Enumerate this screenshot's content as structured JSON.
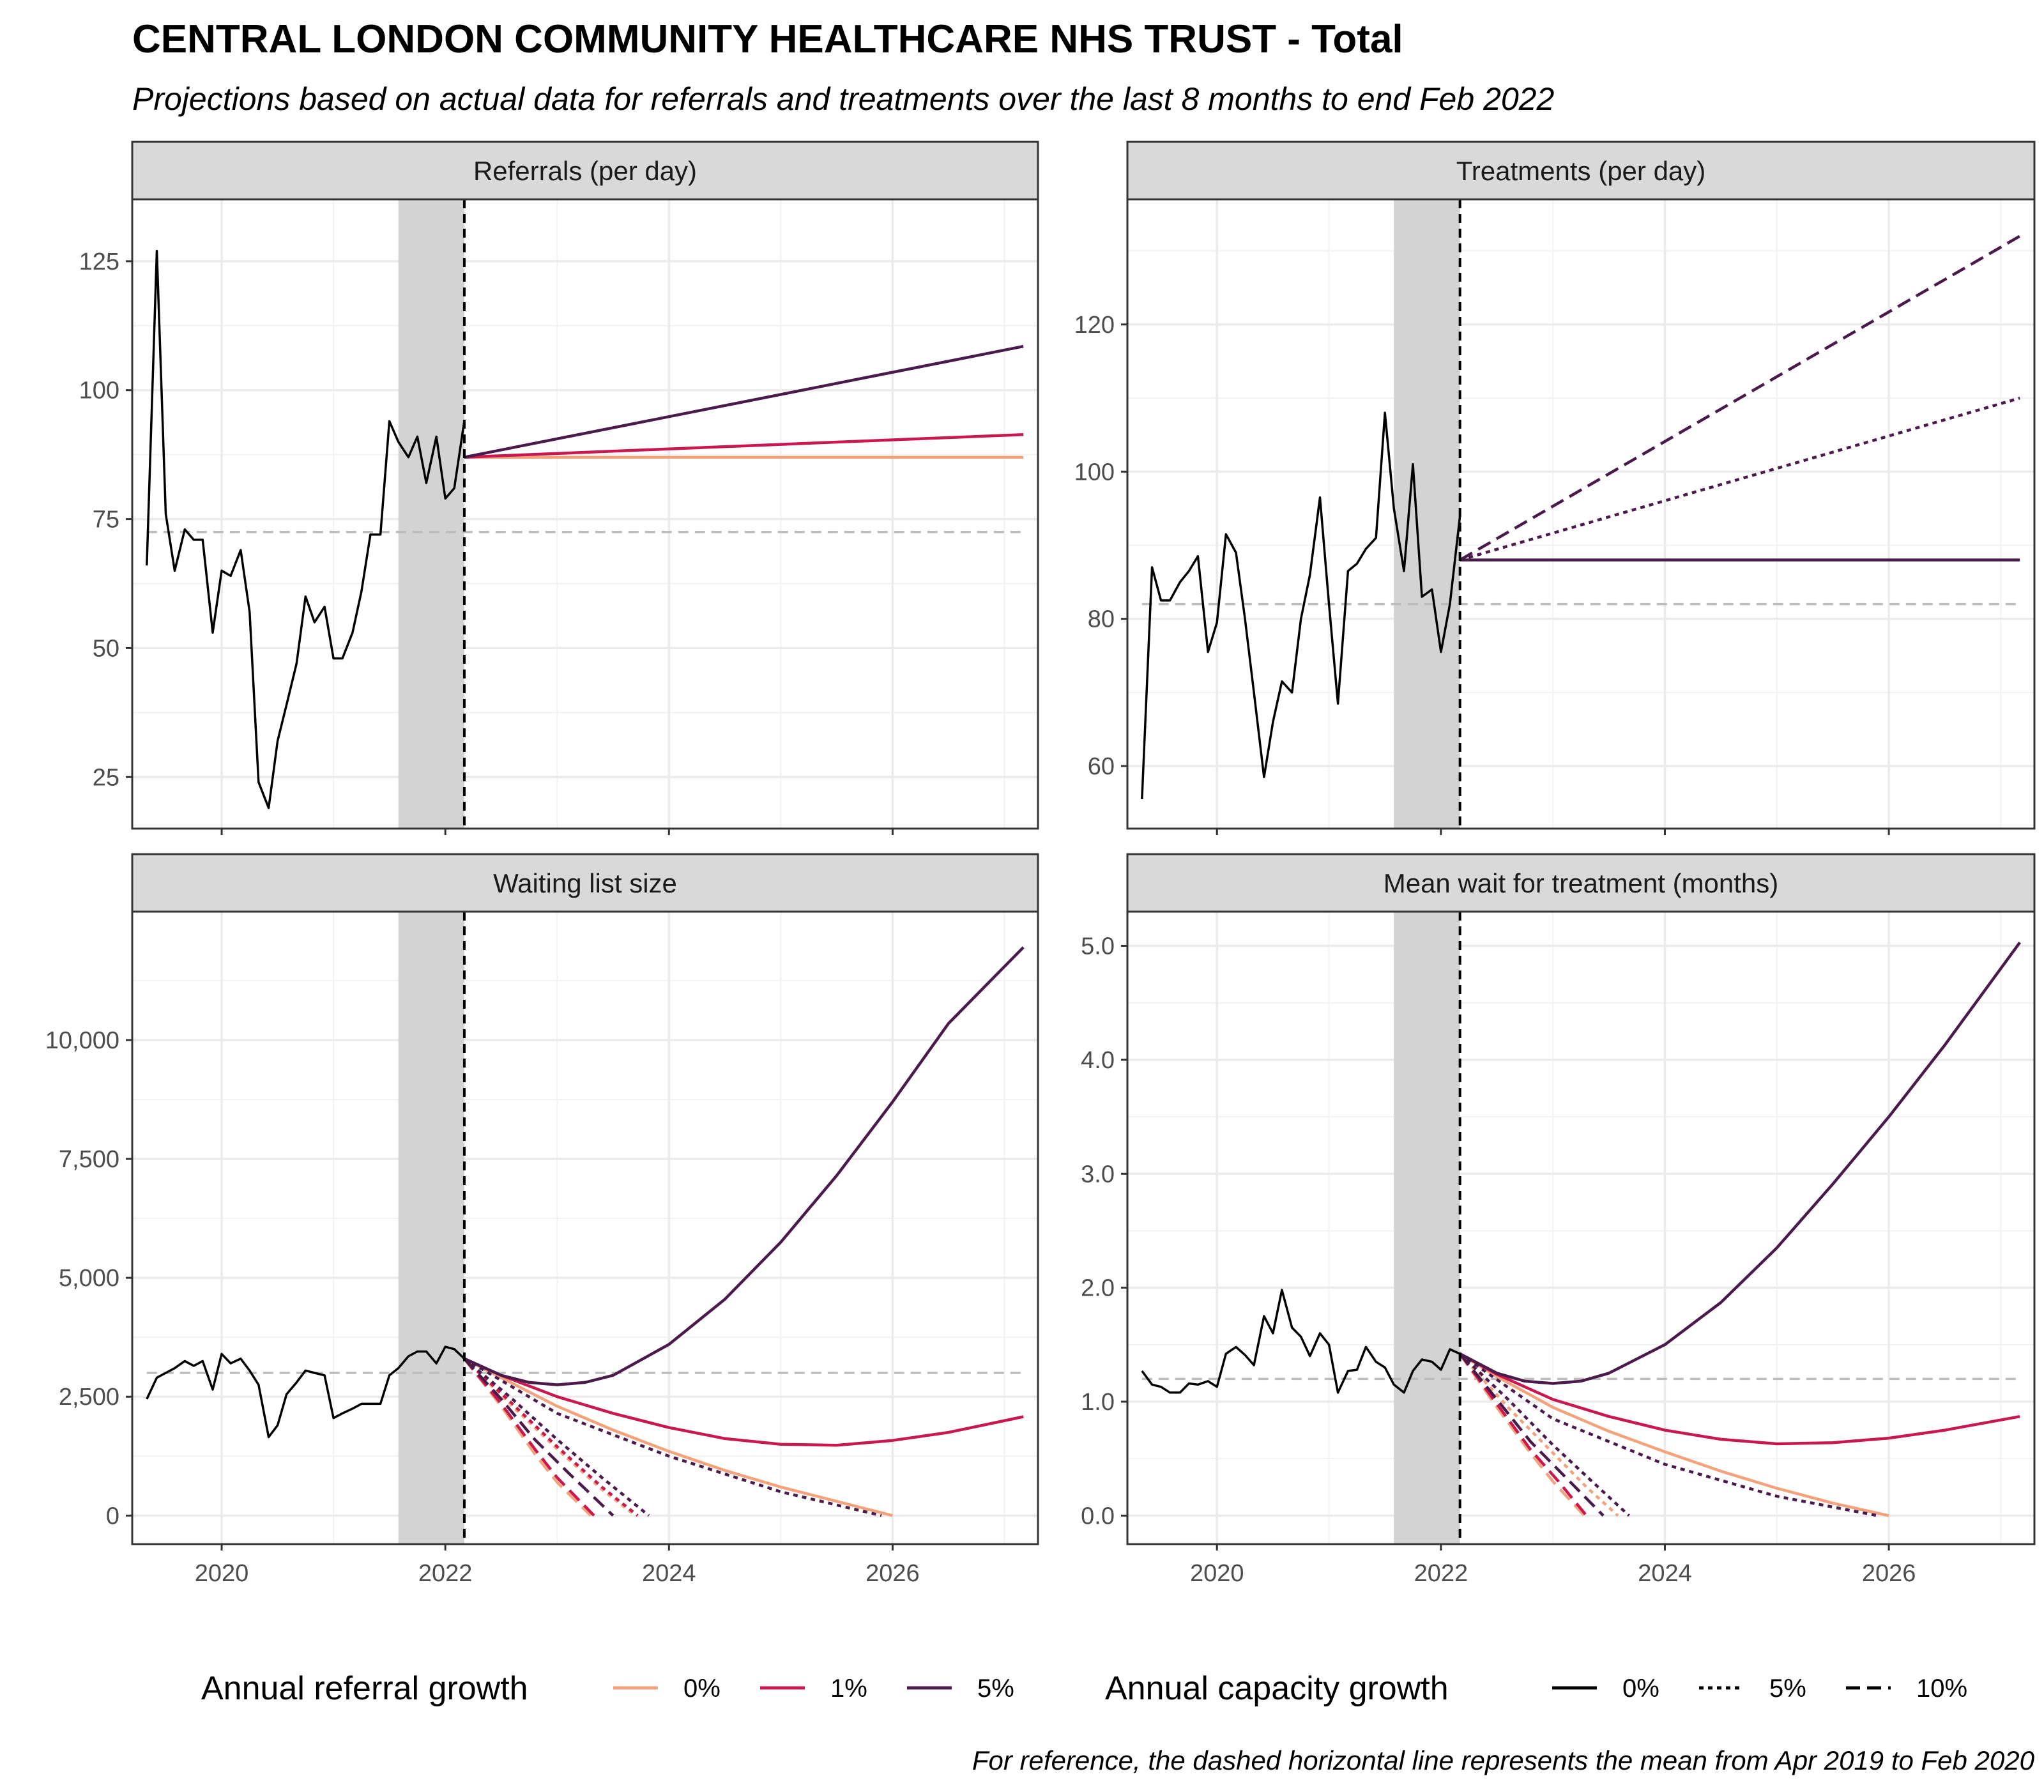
{
  "title": "CENTRAL LONDON COMMUNITY HEALTHCARE NHS TRUST - Total",
  "subtitle": "Projections based on actual data for referrals and treatments over the last 8 months to end Feb 2022",
  "caption": "For reference, the dashed horizontal line represents the mean from Apr 2019 to Feb 2020",
  "legend": {
    "referral_title": "Annual referral growth",
    "referral_items": [
      {
        "label": "0%",
        "color": "#F4A27C"
      },
      {
        "label": "1%",
        "color": "#C9174F"
      },
      {
        "label": "5%",
        "color": "#4A1A4C"
      }
    ],
    "capacity_title": "Annual capacity growth",
    "capacity_items": [
      {
        "label": "0%",
        "dash": "solid"
      },
      {
        "label": "5%",
        "dash": "dotted"
      },
      {
        "label": "10%",
        "dash": "dashed"
      }
    ]
  },
  "colors": {
    "actual": "#000000",
    "g0": "#F4A27C",
    "g1": "#C9174F",
    "g5": "#4A1A4C",
    "reference": "#BDBDBD",
    "shade": "#D3D3D3",
    "strip": "#D9D9D9"
  },
  "chart_data": [
    {
      "type": "line",
      "facet": "Referrals (per day)",
      "xlim": [
        2019.2,
        2027.3
      ],
      "ylim": [
        15,
        137
      ],
      "x_ticks": [
        "2020",
        "2022",
        "2024",
        "2026"
      ],
      "y_ticks": [
        "25",
        "50",
        "75",
        "100",
        "125"
      ],
      "y_tick_values": [
        25,
        50,
        75,
        100,
        125
      ],
      "reference_line": 72.5,
      "shaded_range": [
        2021.58,
        2022.17
      ],
      "projection_start": 2022.17,
      "actual": {
        "x": [
          2019.33,
          2019.42,
          2019.5,
          2019.58,
          2019.67,
          2019.75,
          2019.83,
          2019.92,
          2020.0,
          2020.08,
          2020.17,
          2020.25,
          2020.33,
          2020.42,
          2020.5,
          2020.58,
          2020.67,
          2020.75,
          2020.83,
          2020.92,
          2021.0,
          2021.08,
          2021.17,
          2021.25,
          2021.33,
          2021.42,
          2021.5,
          2021.58,
          2021.67,
          2021.75,
          2021.83,
          2021.92,
          2022.0,
          2022.08,
          2022.17
        ],
        "y": [
          66,
          127,
          76,
          65,
          73,
          71,
          71,
          53,
          65,
          64,
          69,
          57,
          24,
          19,
          32,
          39,
          47,
          60,
          55,
          58,
          48,
          48,
          53,
          61,
          72,
          72,
          94,
          90,
          87,
          91,
          82,
          91,
          79,
          81,
          94
        ]
      },
      "series": [
        {
          "name": "0%",
          "growth": "0%",
          "capacity": "0%",
          "x": [
            2022.17,
            2027.17
          ],
          "y": [
            87,
            87
          ]
        },
        {
          "name": "1%",
          "growth": "1%",
          "capacity": "0%",
          "x": [
            2022.17,
            2027.17
          ],
          "y": [
            87,
            91.4
          ]
        },
        {
          "name": "5%",
          "growth": "5%",
          "capacity": "0%",
          "x": [
            2022.17,
            2027.17
          ],
          "y": [
            87,
            108.5
          ]
        }
      ]
    },
    {
      "type": "line",
      "facet": "Treatments (per day)",
      "xlim": [
        2019.2,
        2027.3
      ],
      "ylim": [
        51.5,
        137
      ],
      "x_ticks": [
        "2020",
        "2022",
        "2024",
        "2026"
      ],
      "y_ticks": [
        "60",
        "80",
        "100",
        "120"
      ],
      "y_tick_values": [
        60,
        80,
        100,
        120
      ],
      "reference_line": 82,
      "shaded_range": [
        2021.58,
        2022.17
      ],
      "projection_start": 2022.17,
      "actual": {
        "x": [
          2019.33,
          2019.42,
          2019.5,
          2019.58,
          2019.67,
          2019.75,
          2019.83,
          2019.92,
          2020.0,
          2020.08,
          2020.17,
          2020.25,
          2020.33,
          2020.42,
          2020.5,
          2020.58,
          2020.67,
          2020.75,
          2020.83,
          2020.92,
          2021.0,
          2021.08,
          2021.17,
          2021.25,
          2021.33,
          2021.42,
          2021.5,
          2021.58,
          2021.67,
          2021.75,
          2021.83,
          2021.92,
          2022.0,
          2022.08,
          2022.17
        ],
        "y": [
          55.5,
          87,
          82.5,
          82.5,
          85,
          86.5,
          88.5,
          75.5,
          79.5,
          91.5,
          89,
          80,
          70,
          58.5,
          66,
          71.5,
          70,
          80,
          86,
          96.5,
          82,
          68.5,
          86.5,
          87.5,
          89.5,
          91,
          108,
          95,
          86.5,
          101,
          83,
          84,
          75.5,
          82,
          94
        ]
      },
      "series": [
        {
          "name": "0%",
          "capacity": "0%",
          "x": [
            2022.17,
            2027.17
          ],
          "y": [
            88,
            88
          ]
        },
        {
          "name": "5%",
          "capacity": "5%",
          "x": [
            2022.17,
            2027.17
          ],
          "y": [
            88,
            110
          ]
        },
        {
          "name": "10%",
          "capacity": "10%",
          "x": [
            2022.17,
            2027.17
          ],
          "y": [
            88,
            132
          ]
        }
      ]
    },
    {
      "type": "line",
      "facet": "Waiting list size",
      "xlim": [
        2019.2,
        2027.3
      ],
      "ylim": [
        -600,
        12700
      ],
      "x_ticks": [
        "2020",
        "2022",
        "2024",
        "2026"
      ],
      "y_ticks": [
        "0",
        "2,500",
        "5,000",
        "7,500",
        "10,000"
      ],
      "y_tick_values": [
        0,
        2500,
        5000,
        7500,
        10000
      ],
      "reference_line": 3000,
      "shaded_range": [
        2021.58,
        2022.17
      ],
      "projection_start": 2022.17,
      "actual": {
        "x": [
          2019.33,
          2019.42,
          2019.5,
          2019.58,
          2019.67,
          2019.75,
          2019.83,
          2019.92,
          2020.0,
          2020.08,
          2020.17,
          2020.25,
          2020.33,
          2020.42,
          2020.5,
          2020.58,
          2020.67,
          2020.75,
          2020.83,
          2020.92,
          2021.0,
          2021.08,
          2021.17,
          2021.25,
          2021.33,
          2021.42,
          2021.5,
          2021.58,
          2021.67,
          2021.75,
          2021.83,
          2021.92,
          2022.0,
          2022.08,
          2022.17
        ],
        "y": [
          2450,
          2900,
          3000,
          3100,
          3250,
          3150,
          3250,
          2650,
          3400,
          3200,
          3300,
          3050,
          2750,
          1650,
          1900,
          2550,
          2800,
          3050,
          3000,
          2950,
          2050,
          2150,
          2250,
          2350,
          2350,
          2350,
          2950,
          3100,
          3350,
          3450,
          3450,
          3200,
          3550,
          3500,
          3300
        ]
      },
      "series": [
        {
          "name": "0% referral / 0% capacity",
          "growth": "0%",
          "capacity": "0%",
          "x": [
            2022.17,
            2022.5,
            2023.0,
            2023.5,
            2024.0,
            2024.5,
            2025.0,
            2025.5,
            2026.0
          ],
          "y": [
            3300,
            2900,
            2300,
            1800,
            1350,
            950,
            600,
            300,
            0
          ]
        },
        {
          "name": "1% referral / 0% capacity",
          "growth": "1%",
          "capacity": "0%",
          "x": [
            2022.17,
            2022.5,
            2023.0,
            2023.5,
            2024.0,
            2024.5,
            2025.0,
            2025.5,
            2026.0,
            2026.5,
            2027.17
          ],
          "y": [
            3300,
            2950,
            2500,
            2150,
            1850,
            1620,
            1500,
            1480,
            1580,
            1750,
            2080
          ]
        },
        {
          "name": "5% referral / 0% capacity",
          "growth": "5%",
          "capacity": "0%",
          "x": [
            2022.17,
            2022.5,
            2022.75,
            2023.0,
            2023.25,
            2023.5,
            2024.0,
            2024.5,
            2025.0,
            2025.5,
            2026.0,
            2026.5,
            2027.17
          ],
          "y": [
            3300,
            2950,
            2800,
            2750,
            2800,
            2950,
            3600,
            4550,
            5750,
            7150,
            8700,
            10350,
            11950
          ]
        },
        {
          "name": "0% referral / 5% capacity",
          "growth": "0%",
          "capacity": "5%",
          "x": [
            2022.17,
            2022.6,
            2023.0,
            2023.4,
            2023.7
          ],
          "y": [
            3300,
            2300,
            1400,
            550,
            0
          ]
        },
        {
          "name": "1% referral / 5% capacity",
          "growth": "1%",
          "capacity": "5%",
          "x": [
            2022.17,
            2022.6,
            2023.0,
            2023.4,
            2023.72
          ],
          "y": [
            3300,
            2350,
            1450,
            600,
            0
          ]
        },
        {
          "name": "5% referral / 5% capacity",
          "growth": "5%",
          "capacity": "5%",
          "x": [
            2022.17,
            2022.6,
            2023.0,
            2023.4,
            2023.82
          ],
          "y": [
            3300,
            2450,
            1600,
            800,
            0
          ]
        },
        {
          "name": "0% referral / 10% capacity",
          "growth": "0%",
          "capacity": "10%",
          "x": [
            2022.17,
            2022.5,
            2022.8,
            2023.0,
            2023.3
          ],
          "y": [
            3300,
            2300,
            1300,
            700,
            0
          ]
        },
        {
          "name": "1% referral / 10% capacity",
          "growth": "1%",
          "capacity": "10%",
          "x": [
            2022.17,
            2022.5,
            2022.8,
            2023.0,
            2023.33
          ],
          "y": [
            3300,
            2350,
            1400,
            800,
            0
          ]
        },
        {
          "name": "5% referral / 10% capacity",
          "growth": "5%",
          "capacity": "10%",
          "x": [
            2022.17,
            2022.5,
            2022.8,
            2023.1,
            2023.5
          ],
          "y": [
            3300,
            2450,
            1600,
            900,
            0
          ]
        },
        {
          "name": "5% referral / 5% capacity (late)",
          "growth": "5%",
          "capacity": "5%",
          "x": [
            2022.17,
            2023.0,
            2024.0,
            2025.0,
            2025.9
          ],
          "y": [
            3300,
            2150,
            1250,
            500,
            0
          ]
        }
      ]
    },
    {
      "type": "line",
      "facet": "Mean wait for treatment (months)",
      "xlim": [
        2019.2,
        2027.3
      ],
      "ylim": [
        -0.25,
        5.3
      ],
      "x_ticks": [
        "2020",
        "2022",
        "2024",
        "2026"
      ],
      "y_ticks": [
        "0.0",
        "1.0",
        "2.0",
        "3.0",
        "4.0",
        "5.0"
      ],
      "y_tick_values": [
        0,
        1,
        2,
        3,
        4,
        5
      ],
      "reference_line": 1.2,
      "shaded_range": [
        2021.58,
        2022.17
      ],
      "projection_start": 2022.17,
      "actual": {
        "x": [
          2019.33,
          2019.42,
          2019.5,
          2019.58,
          2019.67,
          2019.75,
          2019.83,
          2019.92,
          2020.0,
          2020.08,
          2020.17,
          2020.25,
          2020.33,
          2020.42,
          2020.5,
          2020.58,
          2020.67,
          2020.75,
          2020.83,
          2020.92,
          2021.0,
          2021.08,
          2021.17,
          2021.25,
          2021.33,
          2021.42,
          2021.5,
          2021.58,
          2021.67,
          2021.75,
          2021.83,
          2021.92,
          2022.0,
          2022.08,
          2022.17
        ],
        "y": [
          1.27,
          1.15,
          1.13,
          1.08,
          1.08,
          1.16,
          1.15,
          1.18,
          1.13,
          1.42,
          1.48,
          1.41,
          1.32,
          1.75,
          1.6,
          1.98,
          1.65,
          1.57,
          1.4,
          1.6,
          1.5,
          1.08,
          1.27,
          1.28,
          1.48,
          1.35,
          1.3,
          1.15,
          1.08,
          1.27,
          1.37,
          1.35,
          1.28,
          1.46,
          1.42
        ]
      },
      "series": [
        {
          "name": "0% referral / 0% capacity",
          "growth": "0%",
          "capacity": "0%",
          "x": [
            2022.17,
            2022.5,
            2023.0,
            2023.5,
            2024.0,
            2024.5,
            2025.0,
            2025.5,
            2026.0
          ],
          "y": [
            1.42,
            1.22,
            0.95,
            0.74,
            0.56,
            0.39,
            0.24,
            0.11,
            0.0
          ]
        },
        {
          "name": "1% referral / 0% capacity",
          "growth": "1%",
          "capacity": "0%",
          "x": [
            2022.17,
            2022.5,
            2023.0,
            2023.5,
            2024.0,
            2024.5,
            2025.0,
            2025.5,
            2026.0,
            2026.5,
            2027.17
          ],
          "y": [
            1.42,
            1.24,
            1.02,
            0.87,
            0.75,
            0.67,
            0.63,
            0.64,
            0.68,
            0.75,
            0.87
          ]
        },
        {
          "name": "5% referral / 0% capacity",
          "growth": "5%",
          "capacity": "0%",
          "x": [
            2022.17,
            2022.5,
            2022.75,
            2023.0,
            2023.25,
            2023.5,
            2024.0,
            2024.5,
            2025.0,
            2025.5,
            2026.0,
            2026.5,
            2027.17
          ],
          "y": [
            1.42,
            1.25,
            1.18,
            1.16,
            1.18,
            1.25,
            1.5,
            1.87,
            2.35,
            2.91,
            3.5,
            4.13,
            5.03
          ]
        },
        {
          "name": "0% referral / 5% capacity",
          "growth": "0%",
          "capacity": "5%",
          "x": [
            2022.17,
            2022.6,
            2023.0,
            2023.3,
            2023.58
          ],
          "y": [
            1.42,
            0.95,
            0.55,
            0.25,
            0.0
          ]
        },
        {
          "name": "5% referral / 5% capacity",
          "growth": "5%",
          "capacity": "5%",
          "x": [
            2022.17,
            2022.6,
            2023.0,
            2023.35,
            2023.68
          ],
          "y": [
            1.42,
            1.02,
            0.62,
            0.3,
            0.0
          ]
        },
        {
          "name": "0% referral / 10% capacity",
          "growth": "0%",
          "capacity": "10%",
          "x": [
            2022.17,
            2022.5,
            2022.8,
            2023.0,
            2023.28
          ],
          "y": [
            1.42,
            0.95,
            0.55,
            0.3,
            0.0
          ]
        },
        {
          "name": "1% referral / 10% capacity",
          "growth": "1%",
          "capacity": "10%",
          "x": [
            2022.17,
            2022.5,
            2022.8,
            2023.05,
            2023.3
          ],
          "y": [
            1.42,
            0.98,
            0.58,
            0.3,
            0.0
          ]
        },
        {
          "name": "5% referral / 10% capacity",
          "growth": "5%",
          "capacity": "10%",
          "x": [
            2022.17,
            2022.5,
            2022.8,
            2023.1,
            2023.45
          ],
          "y": [
            1.42,
            1.02,
            0.65,
            0.35,
            0.0
          ]
        },
        {
          "name": "5% referral / 5% capacity (late)",
          "growth": "5%",
          "capacity": "5%",
          "x": [
            2022.17,
            2023.0,
            2024.0,
            2025.0,
            2025.9
          ],
          "y": [
            1.42,
            0.85,
            0.45,
            0.17,
            0.0
          ]
        }
      ]
    }
  ]
}
